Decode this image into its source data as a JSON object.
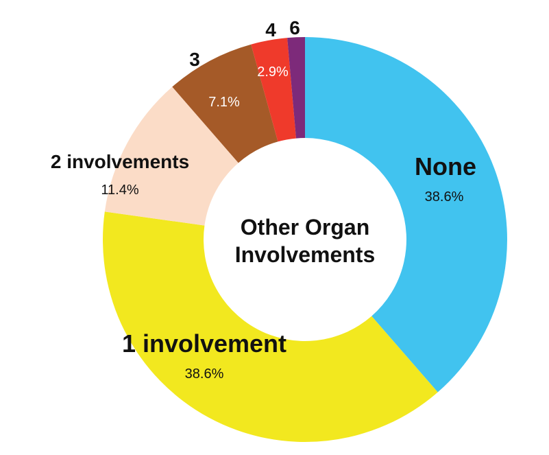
{
  "chart_data": {
    "type": "pie",
    "style": "donut",
    "title_lines": [
      "Other Organ",
      "Involvements"
    ],
    "slices": [
      {
        "label": "None",
        "value": 38.6,
        "value_label": "38.6%",
        "color": "#41c3ef"
      },
      {
        "label": "1 involvement",
        "value": 38.6,
        "value_label": "38.6%",
        "color": "#f2e81f"
      },
      {
        "label": "2 involvements",
        "value": 11.4,
        "value_label": "11.4%",
        "color": "#fbdcc7"
      },
      {
        "label": "3",
        "value": 7.1,
        "value_label": "7.1%",
        "color": "#a55a28"
      },
      {
        "label": "4",
        "value": 2.9,
        "value_label": "2.9%",
        "color": "#ef3a2b"
      },
      {
        "label": "6",
        "value": 1.4,
        "value_label": "",
        "color": "#7d2a7a"
      }
    ]
  }
}
